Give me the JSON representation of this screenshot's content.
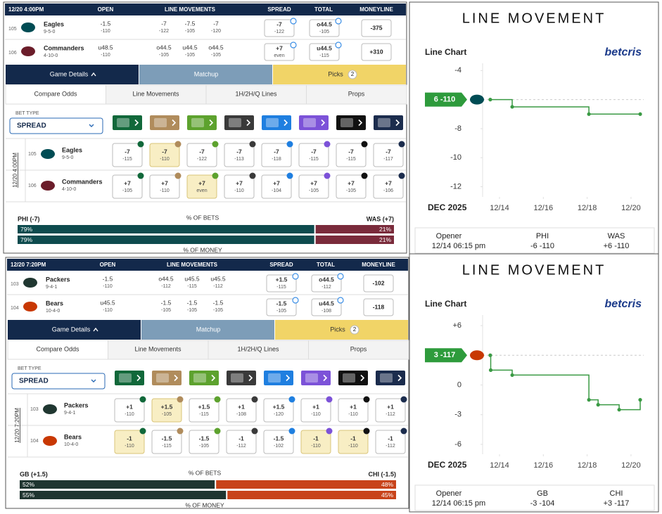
{
  "games": [
    {
      "header": {
        "time": "12/20 4:00PM",
        "open": "OPEN",
        "line_movements": "LINE MOVEMENTS",
        "spread": "SPREAD",
        "total": "TOTAL",
        "moneyline": "MONEYLINE"
      },
      "teams": [
        {
          "rotation": "105",
          "name": "Eagles",
          "record": "9-5-0",
          "color": "#004c54",
          "open": [
            "-1.5",
            "-110"
          ],
          "movements": [
            [
              "-7",
              "-122"
            ],
            [
              "-7.5",
              "-105"
            ],
            [
              "-7",
              "-120"
            ]
          ],
          "spread": [
            "-7",
            "-122"
          ],
          "total": [
            "o44.5",
            "-105"
          ],
          "moneyline": "-375"
        },
        {
          "rotation": "106",
          "name": "Commanders",
          "record": "4-10-0",
          "color": "#6b1d2a",
          "open": [
            "u48.5",
            "-110"
          ],
          "movements": [
            [
              "o44.5",
              "-105"
            ],
            [
              "u44.5",
              "-105"
            ],
            [
              "o44.5",
              "-105"
            ]
          ],
          "spread": [
            "+7",
            "even"
          ],
          "total": [
            "u44.5",
            "-115"
          ],
          "moneyline": "+310"
        }
      ],
      "tabs": [
        "Game Details",
        "Matchup",
        "Picks"
      ],
      "picks_count": "2",
      "subtabs": [
        "Compare Odds",
        "Line Movements",
        "1H/2H/Q Lines",
        "Props"
      ],
      "bet_type_label": "BET TYPE",
      "bet_type": "SPREAD",
      "book_colors": [
        "#11683a",
        "#b08c5c",
        "#5da22e",
        "#3a3a3a",
        "#1f7fe0",
        "#7c52d8",
        "#111111",
        "#1b2c4d"
      ],
      "odds": [
        {
          "cells": [
            [
              "-7",
              "-115"
            ],
            [
              "-7",
              "-110"
            ],
            [
              "-7",
              "-122"
            ],
            [
              "-7",
              "-113"
            ],
            [
              "-7",
              "-118"
            ],
            [
              "-7",
              "-115"
            ],
            [
              "-7",
              "-115"
            ],
            [
              "-7",
              "-117"
            ]
          ],
          "highlighted": [
            1
          ]
        },
        {
          "cells": [
            [
              "+7",
              "-105"
            ],
            [
              "+7",
              "-110"
            ],
            [
              "+7",
              "even"
            ],
            [
              "+7",
              "-110"
            ],
            [
              "+7",
              "-104"
            ],
            [
              "+7",
              "-105"
            ],
            [
              "+7",
              "-105"
            ],
            [
              "+7",
              "-106"
            ]
          ],
          "highlighted": [
            2
          ]
        }
      ],
      "split": {
        "left": "PHI (-7)",
        "right": "WAS (+7)",
        "bets_label": "% OF BETS",
        "money_label": "% OF MONEY",
        "colors": [
          "#0e4b4e",
          "#7a2b3b"
        ],
        "bets": {
          "values": [
            79,
            21
          ],
          "value_labels": [
            "79%",
            "21%"
          ]
        },
        "money": {
          "values": [
            79,
            21
          ],
          "value_labels": [
            "79%",
            "21%"
          ]
        }
      }
    },
    {
      "header": {
        "time": "12/20 7:20PM",
        "open": "OPEN",
        "line_movements": "LINE MOVEMENTS",
        "spread": "SPREAD",
        "total": "TOTAL",
        "moneyline": "MONEYLINE"
      },
      "teams": [
        {
          "rotation": "103",
          "name": "Packers",
          "record": "9-4-1",
          "color": "#203731",
          "open": [
            "-1.5",
            "-110"
          ],
          "movements": [
            [
              "o44.5",
              "-112"
            ],
            [
              "u45.5",
              "-115"
            ],
            [
              "u45.5",
              "-112"
            ]
          ],
          "spread": [
            "+1.5",
            "-115"
          ],
          "total": [
            "o44.5",
            "-112"
          ],
          "moneyline": "-102"
        },
        {
          "rotation": "104",
          "name": "Bears",
          "record": "10-4-0",
          "color": "#c83803",
          "open": [
            "u45.5",
            "-110"
          ],
          "movements": [
            [
              "-1.5",
              "-105"
            ],
            [
              "-1.5",
              "-105"
            ],
            [
              "-1.5",
              "-105"
            ]
          ],
          "spread": [
            "-1.5",
            "-105"
          ],
          "total": [
            "u44.5",
            "-108"
          ],
          "moneyline": "-118"
        }
      ],
      "tabs": [
        "Game Details",
        "Matchup",
        "Picks"
      ],
      "picks_count": "2",
      "subtabs": [
        "Compare Odds",
        "Line Movements",
        "1H/2H/Q Lines",
        "Props"
      ],
      "bet_type_label": "BET TYPE",
      "bet_type": "SPREAD",
      "book_colors": [
        "#11683a",
        "#b08c5c",
        "#5da22e",
        "#3a3a3a",
        "#1f7fe0",
        "#7c52d8",
        "#111111",
        "#1b2c4d"
      ],
      "odds": [
        {
          "cells": [
            [
              "+1",
              "-110"
            ],
            [
              "+1.5",
              "-105"
            ],
            [
              "+1.5",
              "-115"
            ],
            [
              "+1",
              "-108"
            ],
            [
              "+1.5",
              "-120"
            ],
            [
              "+1",
              "-110"
            ],
            [
              "+1",
              "-110"
            ],
            [
              "+1",
              "-112"
            ]
          ],
          "highlighted": [
            1
          ]
        },
        {
          "cells": [
            [
              "-1",
              "-110"
            ],
            [
              "-1.5",
              "-115"
            ],
            [
              "-1.5",
              "-105"
            ],
            [
              "-1",
              "-112"
            ],
            [
              "-1.5",
              "-102"
            ],
            [
              "-1",
              "-110"
            ],
            [
              "-1",
              "-110"
            ],
            [
              "-1",
              "-112"
            ]
          ],
          "highlighted": [
            0,
            5,
            6
          ]
        }
      ],
      "split": {
        "left": "GB (+1.5)",
        "right": "CHI (-1.5)",
        "bets_label": "% OF BETS",
        "money_label": "% OF MONEY",
        "colors": [
          "#1f3530",
          "#c8431a"
        ],
        "bets": {
          "values": [
            52,
            48
          ],
          "value_labels": [
            "52%",
            "48%"
          ]
        },
        "money": {
          "values": [
            55,
            45
          ],
          "value_labels": [
            "55%",
            "45%"
          ]
        }
      }
    }
  ],
  "chart_data": [
    {
      "type": "line",
      "step": true,
      "title": "LINE MOVEMENT",
      "subtitle": "Line Chart",
      "brand": "betcris",
      "badge": "6 -110",
      "badge_color": "#2e9b3c",
      "team_color": "#004c54",
      "x_label": "DEC 2025",
      "x": [
        13.58,
        14.58,
        18.08,
        20.42
      ],
      "values": [
        -6,
        -6.5,
        -7,
        -7
      ],
      "color": "#3a9a44",
      "xlim": [
        13.23,
        20.58
      ],
      "xticks": [
        {
          "value": 14,
          "label": "12/14"
        },
        {
          "value": 16,
          "label": "12/16"
        },
        {
          "value": 18,
          "label": "12/18"
        },
        {
          "value": 20,
          "label": "12/20"
        }
      ],
      "ylim": [
        -12.7,
        -3.5
      ],
      "yticks": [
        -4,
        -8,
        -10,
        -12
      ],
      "footer": {
        "opener": "Opener",
        "opener_time": "12/14 06:15 pm",
        "sides": [
          {
            "team": "PHI",
            "line": "-6 -110"
          },
          {
            "team": "WAS",
            "line": "+6 -110"
          }
        ]
      }
    },
    {
      "type": "line",
      "step": true,
      "title": "LINE MOVEMENT",
      "subtitle": "Line Chart",
      "brand": "betcris",
      "badge": "3 -117",
      "badge_color": "#2e9b3c",
      "team_color": "#c83803",
      "x_label": "DEC 2025",
      "x": [
        13.58,
        13.6,
        14.58,
        18.08,
        18.5,
        19.46,
        20.42
      ],
      "values": [
        3,
        1.5,
        1,
        -1.5,
        -2,
        -2.5,
        -1.5
      ],
      "color": "#3a9a44",
      "xlim": [
        13.23,
        20.58
      ],
      "xticks": [
        {
          "value": 14,
          "label": "12/14"
        },
        {
          "value": 16,
          "label": "12/16"
        },
        {
          "value": 18,
          "label": "12/18"
        },
        {
          "value": 20,
          "label": "12/20"
        }
      ],
      "ylim": [
        -7,
        7.07
      ],
      "yticks": [
        {
          "value": 6,
          "label": "+6"
        },
        0,
        -3,
        -6
      ],
      "footer": {
        "opener": "Opener",
        "opener_time": "12/14 06:15 pm",
        "sides": [
          {
            "team": "GB",
            "line": "-3 -104"
          },
          {
            "team": "CHI",
            "line": "+3 -117"
          }
        ]
      }
    }
  ]
}
